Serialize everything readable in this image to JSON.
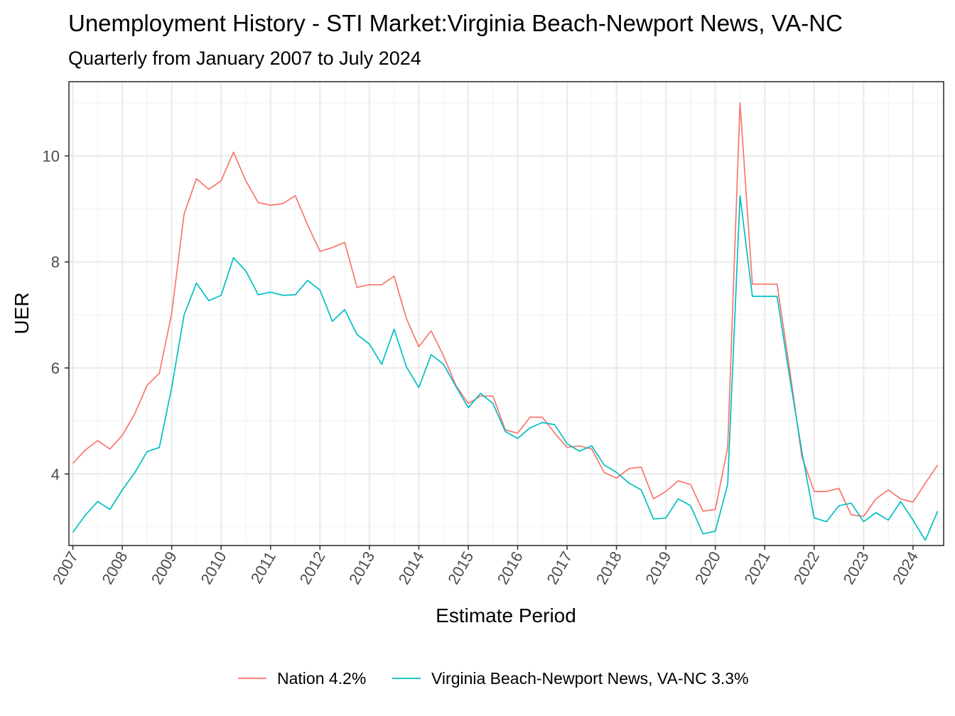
{
  "chart_data": {
    "type": "line",
    "title": "Unemployment History - STI Market:Virginia Beach-Newport News, VA-NC",
    "subtitle": "Quarterly from January 2007 to July 2024",
    "xlabel": "Estimate Period",
    "ylabel": "UER",
    "xlim": [
      2006.92,
      2024.62
    ],
    "ylim": [
      2.65,
      11.4
    ],
    "y_ticks": [
      4,
      6,
      8,
      10
    ],
    "x_ticks": [
      "2007",
      "2008",
      "2009",
      "2010",
      "2011",
      "2012",
      "2013",
      "2014",
      "2015",
      "2016",
      "2017",
      "2018",
      "2019",
      "2020",
      "2021",
      "2022",
      "2023",
      "2024"
    ],
    "grid": true,
    "legend_position": "bottom",
    "x": [
      2007.0,
      2007.25,
      2007.5,
      2007.75,
      2008.0,
      2008.25,
      2008.5,
      2008.75,
      2009.0,
      2009.25,
      2009.5,
      2009.75,
      2010.0,
      2010.25,
      2010.5,
      2010.75,
      2011.0,
      2011.25,
      2011.5,
      2011.75,
      2012.0,
      2012.25,
      2012.5,
      2012.75,
      2013.0,
      2013.25,
      2013.5,
      2013.75,
      2014.0,
      2014.25,
      2014.5,
      2014.75,
      2015.0,
      2015.25,
      2015.5,
      2015.75,
      2016.0,
      2016.25,
      2016.5,
      2016.75,
      2017.0,
      2017.25,
      2017.5,
      2017.75,
      2018.0,
      2018.25,
      2018.5,
      2018.75,
      2019.0,
      2019.25,
      2019.5,
      2019.75,
      2020.0,
      2020.25,
      2020.5,
      2020.75,
      2021.0,
      2021.25,
      2021.5,
      2021.75,
      2022.0,
      2022.25,
      2022.5,
      2022.75,
      2023.0,
      2023.25,
      2023.5,
      2023.75,
      2024.0,
      2024.25,
      2024.5
    ],
    "series": [
      {
        "name": "Nation 4.2%",
        "color": "#F8766D",
        "values": [
          4.2,
          4.45,
          4.63,
          4.47,
          4.73,
          5.13,
          5.67,
          5.9,
          7.03,
          8.9,
          9.57,
          9.37,
          9.53,
          10.07,
          9.53,
          9.12,
          9.07,
          9.1,
          9.25,
          8.7,
          8.2,
          8.27,
          8.37,
          7.52,
          7.57,
          7.57,
          7.73,
          6.93,
          6.4,
          6.7,
          6.23,
          5.67,
          5.33,
          5.47,
          5.47,
          4.83,
          4.77,
          5.07,
          5.07,
          4.77,
          4.5,
          4.53,
          4.47,
          4.03,
          3.92,
          4.1,
          4.13,
          3.53,
          3.67,
          3.87,
          3.8,
          3.3,
          3.33,
          4.5,
          11.0,
          7.58,
          7.58,
          7.58,
          6.0,
          4.33,
          3.67,
          3.67,
          3.73,
          3.23,
          3.2,
          3.53,
          3.7,
          3.53,
          3.47,
          3.83,
          4.17
        ]
      },
      {
        "name": "Virginia Beach-Newport News, VA-NC 3.3%",
        "color": "#00BFC4",
        "values": [
          2.9,
          3.22,
          3.48,
          3.33,
          3.7,
          4.02,
          4.42,
          4.5,
          5.63,
          7.0,
          7.6,
          7.27,
          7.37,
          8.08,
          7.83,
          7.38,
          7.43,
          7.37,
          7.38,
          7.65,
          7.47,
          6.88,
          7.1,
          6.63,
          6.45,
          6.07,
          6.73,
          6.02,
          5.63,
          6.25,
          6.07,
          5.65,
          5.25,
          5.52,
          5.33,
          4.8,
          4.67,
          4.87,
          4.97,
          4.93,
          4.57,
          4.43,
          4.53,
          4.17,
          4.03,
          3.83,
          3.7,
          3.15,
          3.17,
          3.53,
          3.4,
          2.87,
          2.92,
          3.8,
          9.25,
          7.35,
          7.35,
          7.35,
          5.85,
          4.43,
          3.17,
          3.1,
          3.4,
          3.45,
          3.1,
          3.27,
          3.13,
          3.48,
          3.13,
          2.75,
          3.3
        ]
      }
    ]
  }
}
